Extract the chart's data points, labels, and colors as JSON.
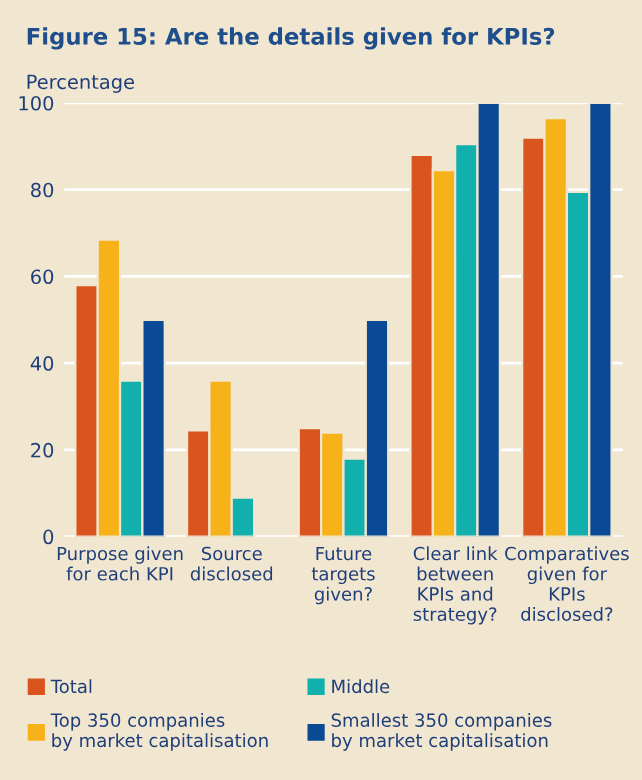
{
  "chart_data": {
    "type": "bar",
    "title": "Figure 15: Are the details given for KPIs?",
    "ylabel": "Percentage",
    "categories": [
      "Purpose given\nfor each KPI",
      "Source\ndisclosed",
      "Future\ntargets\ngiven?",
      "Clear link\nbetween\nKPIs and\nstrategy?",
      "Comparatives\ngiven for\nKPIs\ndisclosed?"
    ],
    "series": [
      {
        "name": "Total",
        "color": "#d9541e",
        "values": [
          58,
          24.5,
          25,
          88,
          92
        ]
      },
      {
        "name": "Top 350 companies\nby market capitalisation",
        "color": "#f7b21a",
        "values": [
          68.5,
          36,
          24,
          84.5,
          96.5
        ]
      },
      {
        "name": "Middle",
        "color": "#12b0ad",
        "values": [
          36,
          9,
          18,
          90.5,
          79.5
        ]
      },
      {
        "name": "Smallest 350 companies\nby market capitalisation",
        "color": "#0a4a94",
        "values": [
          50,
          null,
          50,
          100,
          100
        ]
      }
    ],
    "ylim": [
      0,
      100
    ],
    "yticks": [
      0,
      20,
      40,
      60,
      80,
      100
    ],
    "grid": "y",
    "legend": "bottom"
  }
}
